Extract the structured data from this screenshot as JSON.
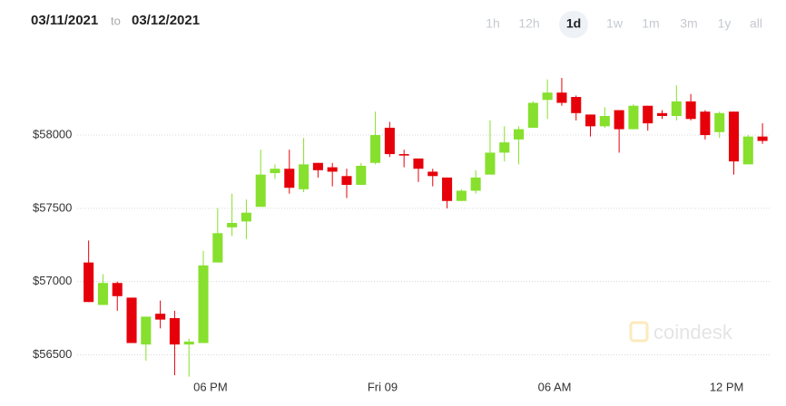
{
  "header": {
    "from": "03/11/2021",
    "to_word": "to",
    "to": "03/12/2021",
    "timeframes": [
      "1h",
      "12h",
      "1d",
      "1w",
      "1m",
      "3m",
      "1y",
      "all"
    ],
    "active_timeframe": "1d"
  },
  "watermark": "coindesk",
  "chart_data": {
    "type": "candlestick",
    "x": [
      13.75,
      14.25,
      14.75,
      15.25,
      15.75,
      16.25,
      16.75,
      17.25,
      17.75,
      18.25,
      18.75,
      19.25,
      19.75,
      20.25,
      20.75,
      21.25,
      21.75,
      22.25,
      22.75,
      23.25,
      23.75,
      24.25,
      24.75,
      25.25,
      25.75,
      26.25,
      26.75,
      27.25,
      27.75,
      28.25,
      28.75,
      29.25,
      29.75,
      30.25,
      30.75,
      31.25,
      31.75,
      32.25,
      32.75,
      33.25,
      33.75,
      34.25,
      34.75,
      35.25,
      35.75,
      36.25,
      36.75,
      37.25
    ],
    "open": [
      57130,
      56840,
      56990,
      56890,
      56570,
      56780,
      56750,
      56570,
      56580,
      57130,
      57370,
      57410,
      57510,
      57740,
      57770,
      57630,
      57810,
      57780,
      57720,
      57660,
      57810,
      58050,
      57870,
      57840,
      57750,
      57710,
      57550,
      57620,
      57730,
      57880,
      57970,
      58050,
      58240,
      58290,
      58260,
      58140,
      58060,
      58170,
      58040,
      58200,
      58150,
      58130,
      58230,
      58160,
      58020,
      58160,
      57800,
      57990
    ],
    "high": [
      57280,
      57050,
      57000,
      56890,
      56760,
      56870,
      56800,
      56610,
      57210,
      57500,
      57600,
      57560,
      57900,
      57800,
      57900,
      57980,
      57810,
      57810,
      57770,
      57810,
      58160,
      58090,
      57900,
      57840,
      57770,
      57710,
      57630,
      57760,
      58100,
      58060,
      58060,
      58230,
      58380,
      58390,
      58270,
      58140,
      58190,
      58170,
      58210,
      58200,
      58170,
      58340,
      58280,
      58170,
      58160,
      58160,
      58000,
      58080
    ],
    "low": [
      56860,
      56840,
      56800,
      56580,
      56460,
      56680,
      56360,
      56350,
      56580,
      57130,
      57310,
      57290,
      57510,
      57700,
      57600,
      57610,
      57710,
      57650,
      57570,
      57660,
      57800,
      57850,
      57780,
      57680,
      57650,
      57500,
      57550,
      57600,
      57730,
      57820,
      57800,
      58050,
      58110,
      58200,
      58100,
      57990,
      58050,
      57880,
      58040,
      58030,
      58110,
      58100,
      58100,
      57970,
      57980,
      57730,
      57800,
      57940
    ],
    "close": [
      56860,
      56990,
      56900,
      56580,
      56760,
      56740,
      56570,
      56590,
      57110,
      57330,
      57400,
      57470,
      57730,
      57770,
      57640,
      57800,
      57760,
      57750,
      57660,
      57790,
      58000,
      57870,
      57860,
      57770,
      57720,
      57550,
      57620,
      57710,
      57880,
      57950,
      58040,
      58220,
      58290,
      58220,
      58150,
      58060,
      58130,
      58040,
      58200,
      58080,
      58130,
      58230,
      58110,
      58000,
      58150,
      57820,
      57990,
      57960
    ],
    "up_color": "#86e02d",
    "down_color": "#e6000a",
    "xlim": [
      13.35,
      37.5
    ],
    "xticks": [
      {
        "value": 18,
        "label": "06 PM"
      },
      {
        "value": 24,
        "label": "Fri 09"
      },
      {
        "value": 30,
        "label": "06 AM"
      },
      {
        "value": 36,
        "label": "12 PM"
      }
    ],
    "ylim": [
      56150,
      58520
    ],
    "yticks": [
      {
        "value": 56500,
        "label": "$56500"
      },
      {
        "value": 57000,
        "label": "$57000"
      },
      {
        "value": 57500,
        "label": "$57500"
      },
      {
        "value": 58000,
        "label": "$58000"
      }
    ],
    "grid": true
  }
}
